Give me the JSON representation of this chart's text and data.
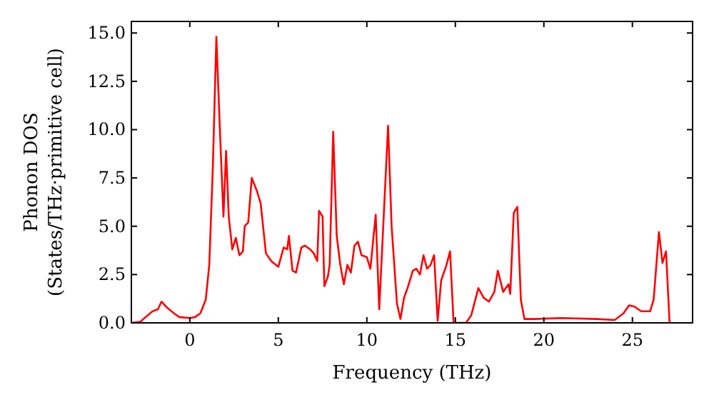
{
  "chart_data": {
    "type": "line",
    "xlabel": "Frequency (THz)",
    "ylabel": "Phonon DOS\n(States/THz·primitive cell)",
    "xlim": [
      -3.3,
      28.4
    ],
    "ylim": [
      0,
      15.6
    ],
    "xticks": [
      0,
      5,
      10,
      15,
      20,
      25
    ],
    "yticks": [
      {
        "value": 0,
        "label": "0.0"
      },
      {
        "value": 2.5,
        "label": "2.5"
      },
      {
        "value": 5,
        "label": "5.0"
      },
      {
        "value": 7.5,
        "label": "7.5"
      },
      {
        "value": 10,
        "label": "10.0"
      },
      {
        "value": 12.5,
        "label": "12.5"
      },
      {
        "value": 15,
        "label": "15.0"
      }
    ],
    "grid": false,
    "series": [
      {
        "color": "#ff0000",
        "x": [
          -3.3,
          -2.8,
          -2.5,
          -2.1,
          -1.8,
          -1.6,
          -1.3,
          -0.9,
          -0.6,
          0,
          0.3,
          0.6,
          0.9,
          1.1,
          1.3,
          1.5,
          1.7,
          1.9,
          2.05,
          2.2,
          2.4,
          2.6,
          2.8,
          3.0,
          3.1,
          3.3,
          3.5,
          3.8,
          4.0,
          4.3,
          4.6,
          5.0,
          5.3,
          5.5,
          5.6,
          5.8,
          6.0,
          6.3,
          6.5,
          6.8,
          7.0,
          7.2,
          7.3,
          7.5,
          7.6,
          7.8,
          7.9,
          8.1,
          8.3,
          8.5,
          8.7,
          8.9,
          9.1,
          9.3,
          9.5,
          9.7,
          10.0,
          10.2,
          10.5,
          10.7,
          10.9,
          11.2,
          11.4,
          11.7,
          11.9,
          12.1,
          12.3,
          12.6,
          12.8,
          13.0,
          13.2,
          13.4,
          13.6,
          13.8,
          14.0,
          14.2,
          14.5,
          14.7,
          14.9,
          15.6,
          15.9,
          16.3,
          16.6,
          16.9,
          17.2,
          17.4,
          17.7,
          18.0,
          18.1,
          18.3,
          18.5,
          18.7,
          18.9,
          19.5,
          21,
          23,
          24,
          24.5,
          24.8,
          25.1,
          25.5,
          26.0,
          26.2,
          26.5,
          26.7,
          26.9,
          27.1
        ],
        "values": [
          0,
          0.05,
          0.3,
          0.6,
          0.7,
          1.1,
          0.8,
          0.5,
          0.3,
          0.25,
          0.3,
          0.5,
          1.2,
          3,
          8,
          14.8,
          10,
          5.5,
          8.9,
          5.5,
          3.8,
          4.4,
          3.5,
          3.7,
          5.0,
          5.2,
          7.5,
          6.8,
          6.2,
          3.6,
          3.2,
          2.9,
          3.9,
          3.8,
          4.5,
          2.7,
          2.6,
          3.9,
          4.0,
          3.8,
          3.6,
          3.2,
          5.8,
          5.5,
          1.9,
          2.4,
          3.0,
          9.9,
          4.5,
          3.0,
          2.0,
          3.0,
          2.6,
          4.0,
          4.2,
          3.5,
          3.4,
          2.8,
          5.6,
          0.7,
          4.5,
          10.2,
          5.0,
          1.0,
          0.2,
          1.3,
          1.8,
          2.7,
          2.8,
          2.5,
          3.5,
          2.8,
          3.0,
          3.5,
          0.1,
          2.2,
          3.0,
          3.7,
          0,
          0,
          0.4,
          1.8,
          1.3,
          1.1,
          1.6,
          2.7,
          1.6,
          2.0,
          1.5,
          5.7,
          6.0,
          1.2,
          0.2,
          0.2,
          0.25,
          0.2,
          0.15,
          0.5,
          0.9,
          0.85,
          0.6,
          0.6,
          1.2,
          4.7,
          3.1,
          3.7,
          0
        ]
      }
    ]
  }
}
